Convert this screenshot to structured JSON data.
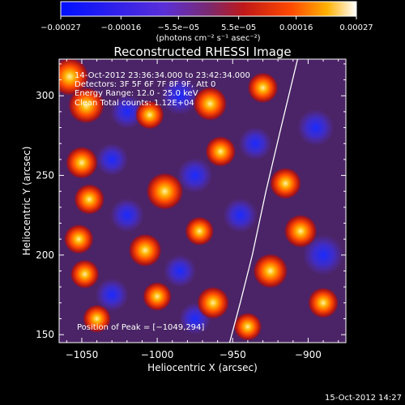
{
  "colorbar": {
    "tick_labels": [
      "−0.00027",
      "−0.00016",
      "−5.5e−05",
      "5.5e−05",
      "0.00016",
      "0.00027"
    ],
    "unit_label": "(photons cm⁻² s⁻¹ asec⁻²)"
  },
  "chart_data": {
    "type": "heatmap",
    "title": "Reconstructed RHESSI Image",
    "xlabel": "Heliocentric X (arcsec)",
    "ylabel": "Heliocentric Y (arcsec)",
    "xlim": [
      -1065,
      -875
    ],
    "ylim": [
      145,
      323
    ],
    "xticks": [
      -1050,
      -1000,
      -950,
      -900
    ],
    "yticks": [
      150,
      200,
      250,
      300
    ],
    "xtick_labels": [
      "−1050",
      "−1000",
      "−950",
      "−900"
    ],
    "ytick_labels": [
      "150",
      "200",
      "250",
      "300"
    ],
    "color_range": [
      -0.00027,
      0.00027
    ],
    "colormap": [
      "#0000ff",
      "#6a2bd0",
      "#a01820",
      "#e43200",
      "#ff9a00",
      "#ffffff"
    ],
    "annotations": [
      "14-Oct-2012 23:36:34.000 to 23:42:34.000",
      "Detectors: 3F 5F 6F 7F 8F 9F, Att 0",
      "Energy Range: 12.0 - 25.0 keV",
      "Clean    Total counts: 1.12E+04"
    ],
    "peak_label": "Position of Peak = [−1049,294]",
    "peak": [
      -1049,
      294
    ],
    "limb_points": [
      [
        -952,
        145
      ],
      [
        -945,
        170
      ],
      [
        -937,
        200
      ],
      [
        -928,
        240
      ],
      [
        -918,
        280
      ],
      [
        -907,
        323
      ]
    ],
    "hot_spots": [
      {
        "x": -1058,
        "y": 312,
        "value": 0.00027
      },
      {
        "x": -1047,
        "y": 294,
        "value": 0.00025
      },
      {
        "x": -1050,
        "y": 258,
        "value": 0.0002
      },
      {
        "x": -1045,
        "y": 235,
        "value": 0.00018
      },
      {
        "x": -1052,
        "y": 210,
        "value": 0.00017
      },
      {
        "x": -1048,
        "y": 188,
        "value": 0.00016
      },
      {
        "x": -1040,
        "y": 160,
        "value": 0.00015
      },
      {
        "x": -1005,
        "y": 288,
        "value": 0.00016
      },
      {
        "x": -995,
        "y": 240,
        "value": 0.00026
      },
      {
        "x": -1008,
        "y": 203,
        "value": 0.00021
      },
      {
        "x": -1000,
        "y": 174,
        "value": 0.00016
      },
      {
        "x": -965,
        "y": 295,
        "value": 0.00022
      },
      {
        "x": -958,
        "y": 265,
        "value": 0.00018
      },
      {
        "x": -972,
        "y": 215,
        "value": 0.00016
      },
      {
        "x": -963,
        "y": 170,
        "value": 0.0002
      },
      {
        "x": -930,
        "y": 305,
        "value": 0.00018
      },
      {
        "x": -915,
        "y": 245,
        "value": 0.00019
      },
      {
        "x": -905,
        "y": 215,
        "value": 0.00021
      },
      {
        "x": -925,
        "y": 190,
        "value": 0.00023
      },
      {
        "x": -890,
        "y": 170,
        "value": 0.00018
      },
      {
        "x": -940,
        "y": 155,
        "value": 0.00015
      }
    ],
    "cold_spots": [
      {
        "x": -1020,
        "y": 290,
        "value": -0.00016
      },
      {
        "x": -985,
        "y": 300,
        "value": -0.00022
      },
      {
        "x": -1030,
        "y": 260,
        "value": -0.00014
      },
      {
        "x": -975,
        "y": 250,
        "value": -0.00018
      },
      {
        "x": -935,
        "y": 270,
        "value": -0.00015
      },
      {
        "x": -895,
        "y": 280,
        "value": -0.0002
      },
      {
        "x": -890,
        "y": 200,
        "value": -0.00026
      },
      {
        "x": -1020,
        "y": 225,
        "value": -0.00016
      },
      {
        "x": -985,
        "y": 190,
        "value": -0.00014
      },
      {
        "x": -945,
        "y": 225,
        "value": -0.00017
      },
      {
        "x": -1030,
        "y": 175,
        "value": -0.00015
      },
      {
        "x": -975,
        "y": 160,
        "value": -0.00013
      }
    ]
  },
  "footer": {
    "timestamp": "15-Oct-2012 14:27"
  }
}
